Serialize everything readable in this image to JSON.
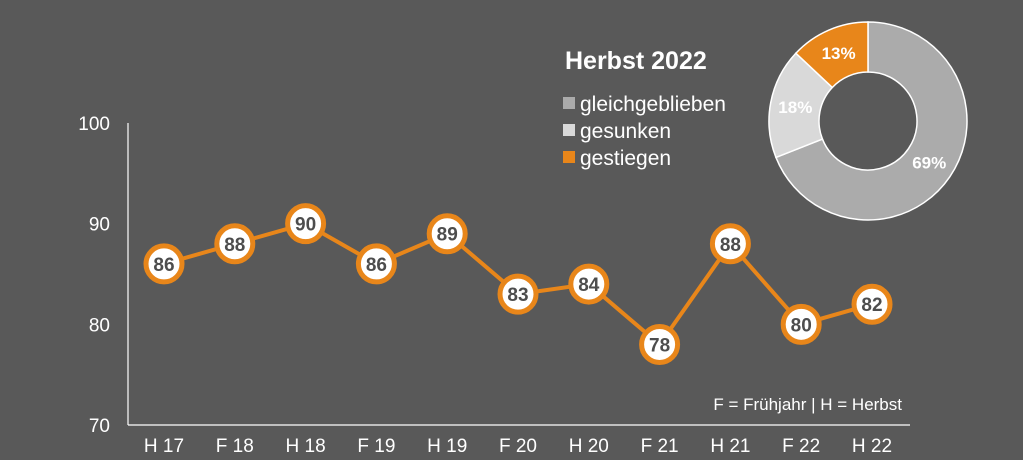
{
  "chart_data": [
    {
      "type": "line",
      "categories": [
        "H 17",
        "F 18",
        "H 18",
        "F 19",
        "H 19",
        "F 20",
        "H 20",
        "F 21",
        "H 21",
        "F 22",
        "H 22"
      ],
      "values": [
        86,
        88,
        90,
        86,
        89,
        83,
        84,
        78,
        88,
        80,
        82
      ],
      "ylim": [
        70,
        100
      ],
      "yticks": [
        70,
        80,
        90,
        100
      ],
      "line_color": "#E8861A",
      "marker_fill": "#FFFFFF",
      "data_labels": true,
      "grid": false,
      "note": "F = Frühjahr | H = Herbst"
    },
    {
      "type": "pie",
      "variant": "donut",
      "title": "Herbst 2022",
      "slices": [
        {
          "label": "gleichgeblieben",
          "value": 69,
          "value_label": "69%",
          "color": "#ABABAB"
        },
        {
          "label": "gesunken",
          "value": 18,
          "value_label": "18%",
          "color": "#D9D9D9"
        },
        {
          "label": "gestiegen",
          "value": 13,
          "value_label": "13%",
          "color": "#E8861A"
        }
      ],
      "legend_position": "left"
    }
  ],
  "colors": {
    "background": "#595959",
    "axis": "#FFFFFF",
    "text": "#FFFFFF",
    "label_text": "#4D4D4D"
  }
}
